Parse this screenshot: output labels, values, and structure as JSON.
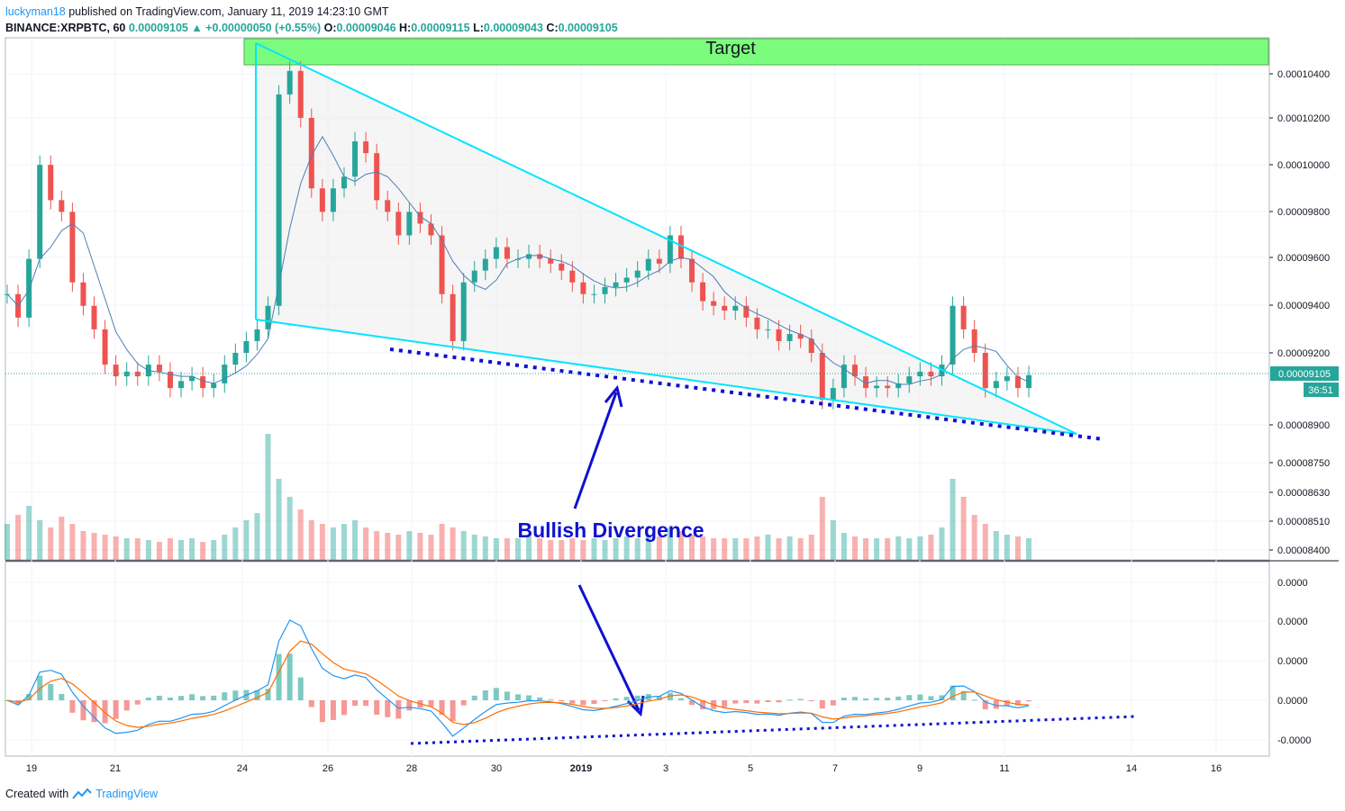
{
  "header": {
    "author": "luckyman18",
    "published_text": "published on TradingView.com, January 11, 2019 14:23:10 GMT",
    "symbol": "BINANCE:XRPBTC, 60",
    "last": "0.00009105",
    "change": "+0.00000050 (+0.55%)",
    "o_label": "O:",
    "o": "0.00009046",
    "h_label": "H:",
    "h": "0.00009115",
    "l_label": "L:",
    "l": "0.00009043",
    "c_label": "C:",
    "c": "0.00009105"
  },
  "footer": {
    "created_with": "Created with",
    "brand": "TradingView"
  },
  "colors": {
    "up": "#26a69a",
    "down": "#ef5350",
    "wedge": "#00e5ff",
    "divergence": "#1010d0",
    "target_fill": "#7cfc7c",
    "ma": "#4a7fb5",
    "macd": "#2196f3",
    "signal": "#ff6d00"
  },
  "chart_data": {
    "type": "candlestick",
    "annotations": {
      "target_label": "Target",
      "divergence_label": "Bullish Divergence"
    },
    "price_axis": {
      "ticks": [
        "0.00010400",
        "0.00010200",
        "0.00010000",
        "0.00009800",
        "0.00009600",
        "0.00009400",
        "0.00009200",
        "0.00008900",
        "0.00008750",
        "0.00008630",
        "0.00008510",
        "0.00008400"
      ],
      "last_price_label": "0.00009105",
      "countdown": "36:51"
    },
    "macd_axis": {
      "ticks": [
        "0.0000",
        "0.0000",
        "0.0000",
        "0.0000",
        "-0.0000"
      ]
    },
    "x_axis": {
      "ticks": [
        "19",
        "21",
        "24",
        "26",
        "28",
        "30",
        "2019",
        "3",
        "5",
        "7",
        "9",
        "11",
        "14",
        "16"
      ]
    },
    "price_series": [
      9.45,
      9.35,
      9.6,
      10.0,
      9.85,
      9.8,
      9.5,
      9.4,
      9.3,
      9.15,
      9.1,
      9.12,
      9.1,
      9.15,
      9.12,
      9.05,
      9.08,
      9.1,
      9.05,
      9.07,
      9.15,
      9.2,
      9.25,
      9.3,
      9.4,
      10.3,
      10.4,
      10.2,
      9.9,
      9.8,
      9.9,
      9.95,
      10.1,
      10.05,
      9.85,
      9.8,
      9.7,
      9.8,
      9.75,
      9.7,
      9.45,
      9.25,
      9.5,
      9.55,
      9.6,
      9.65,
      9.6,
      9.6,
      9.62,
      9.6,
      9.58,
      9.55,
      9.5,
      9.45,
      9.45,
      9.48,
      9.5,
      9.52,
      9.55,
      9.6,
      9.58,
      9.7,
      9.6,
      9.5,
      9.42,
      9.4,
      9.38,
      9.4,
      9.35,
      9.3,
      9.3,
      9.25,
      9.28,
      9.26,
      9.2,
      9.0,
      9.05,
      9.15,
      9.1,
      9.05,
      9.06,
      9.05,
      9.07,
      9.1,
      9.12,
      9.1,
      9.15,
      9.4,
      9.3,
      9.2,
      9.05,
      9.08,
      9.1,
      9.05,
      9.105
    ],
    "volume_series": [
      20,
      25,
      30,
      22,
      18,
      24,
      20,
      16,
      15,
      14,
      13,
      12,
      12,
      11,
      10,
      12,
      11,
      12,
      10,
      11,
      14,
      18,
      22,
      26,
      70,
      45,
      35,
      28,
      22,
      20,
      18,
      20,
      22,
      18,
      16,
      15,
      14,
      16,
      15,
      14,
      20,
      18,
      16,
      14,
      13,
      12,
      12,
      12,
      13,
      12,
      11,
      11,
      12,
      11,
      12,
      11,
      12,
      13,
      12,
      14,
      13,
      18,
      16,
      14,
      13,
      12,
      12,
      12,
      12,
      13,
      14,
      12,
      13,
      12,
      14,
      35,
      22,
      15,
      13,
      12,
      12,
      12,
      13,
      12,
      13,
      14,
      18,
      45,
      35,
      25,
      20,
      16,
      14,
      13,
      12
    ]
  }
}
